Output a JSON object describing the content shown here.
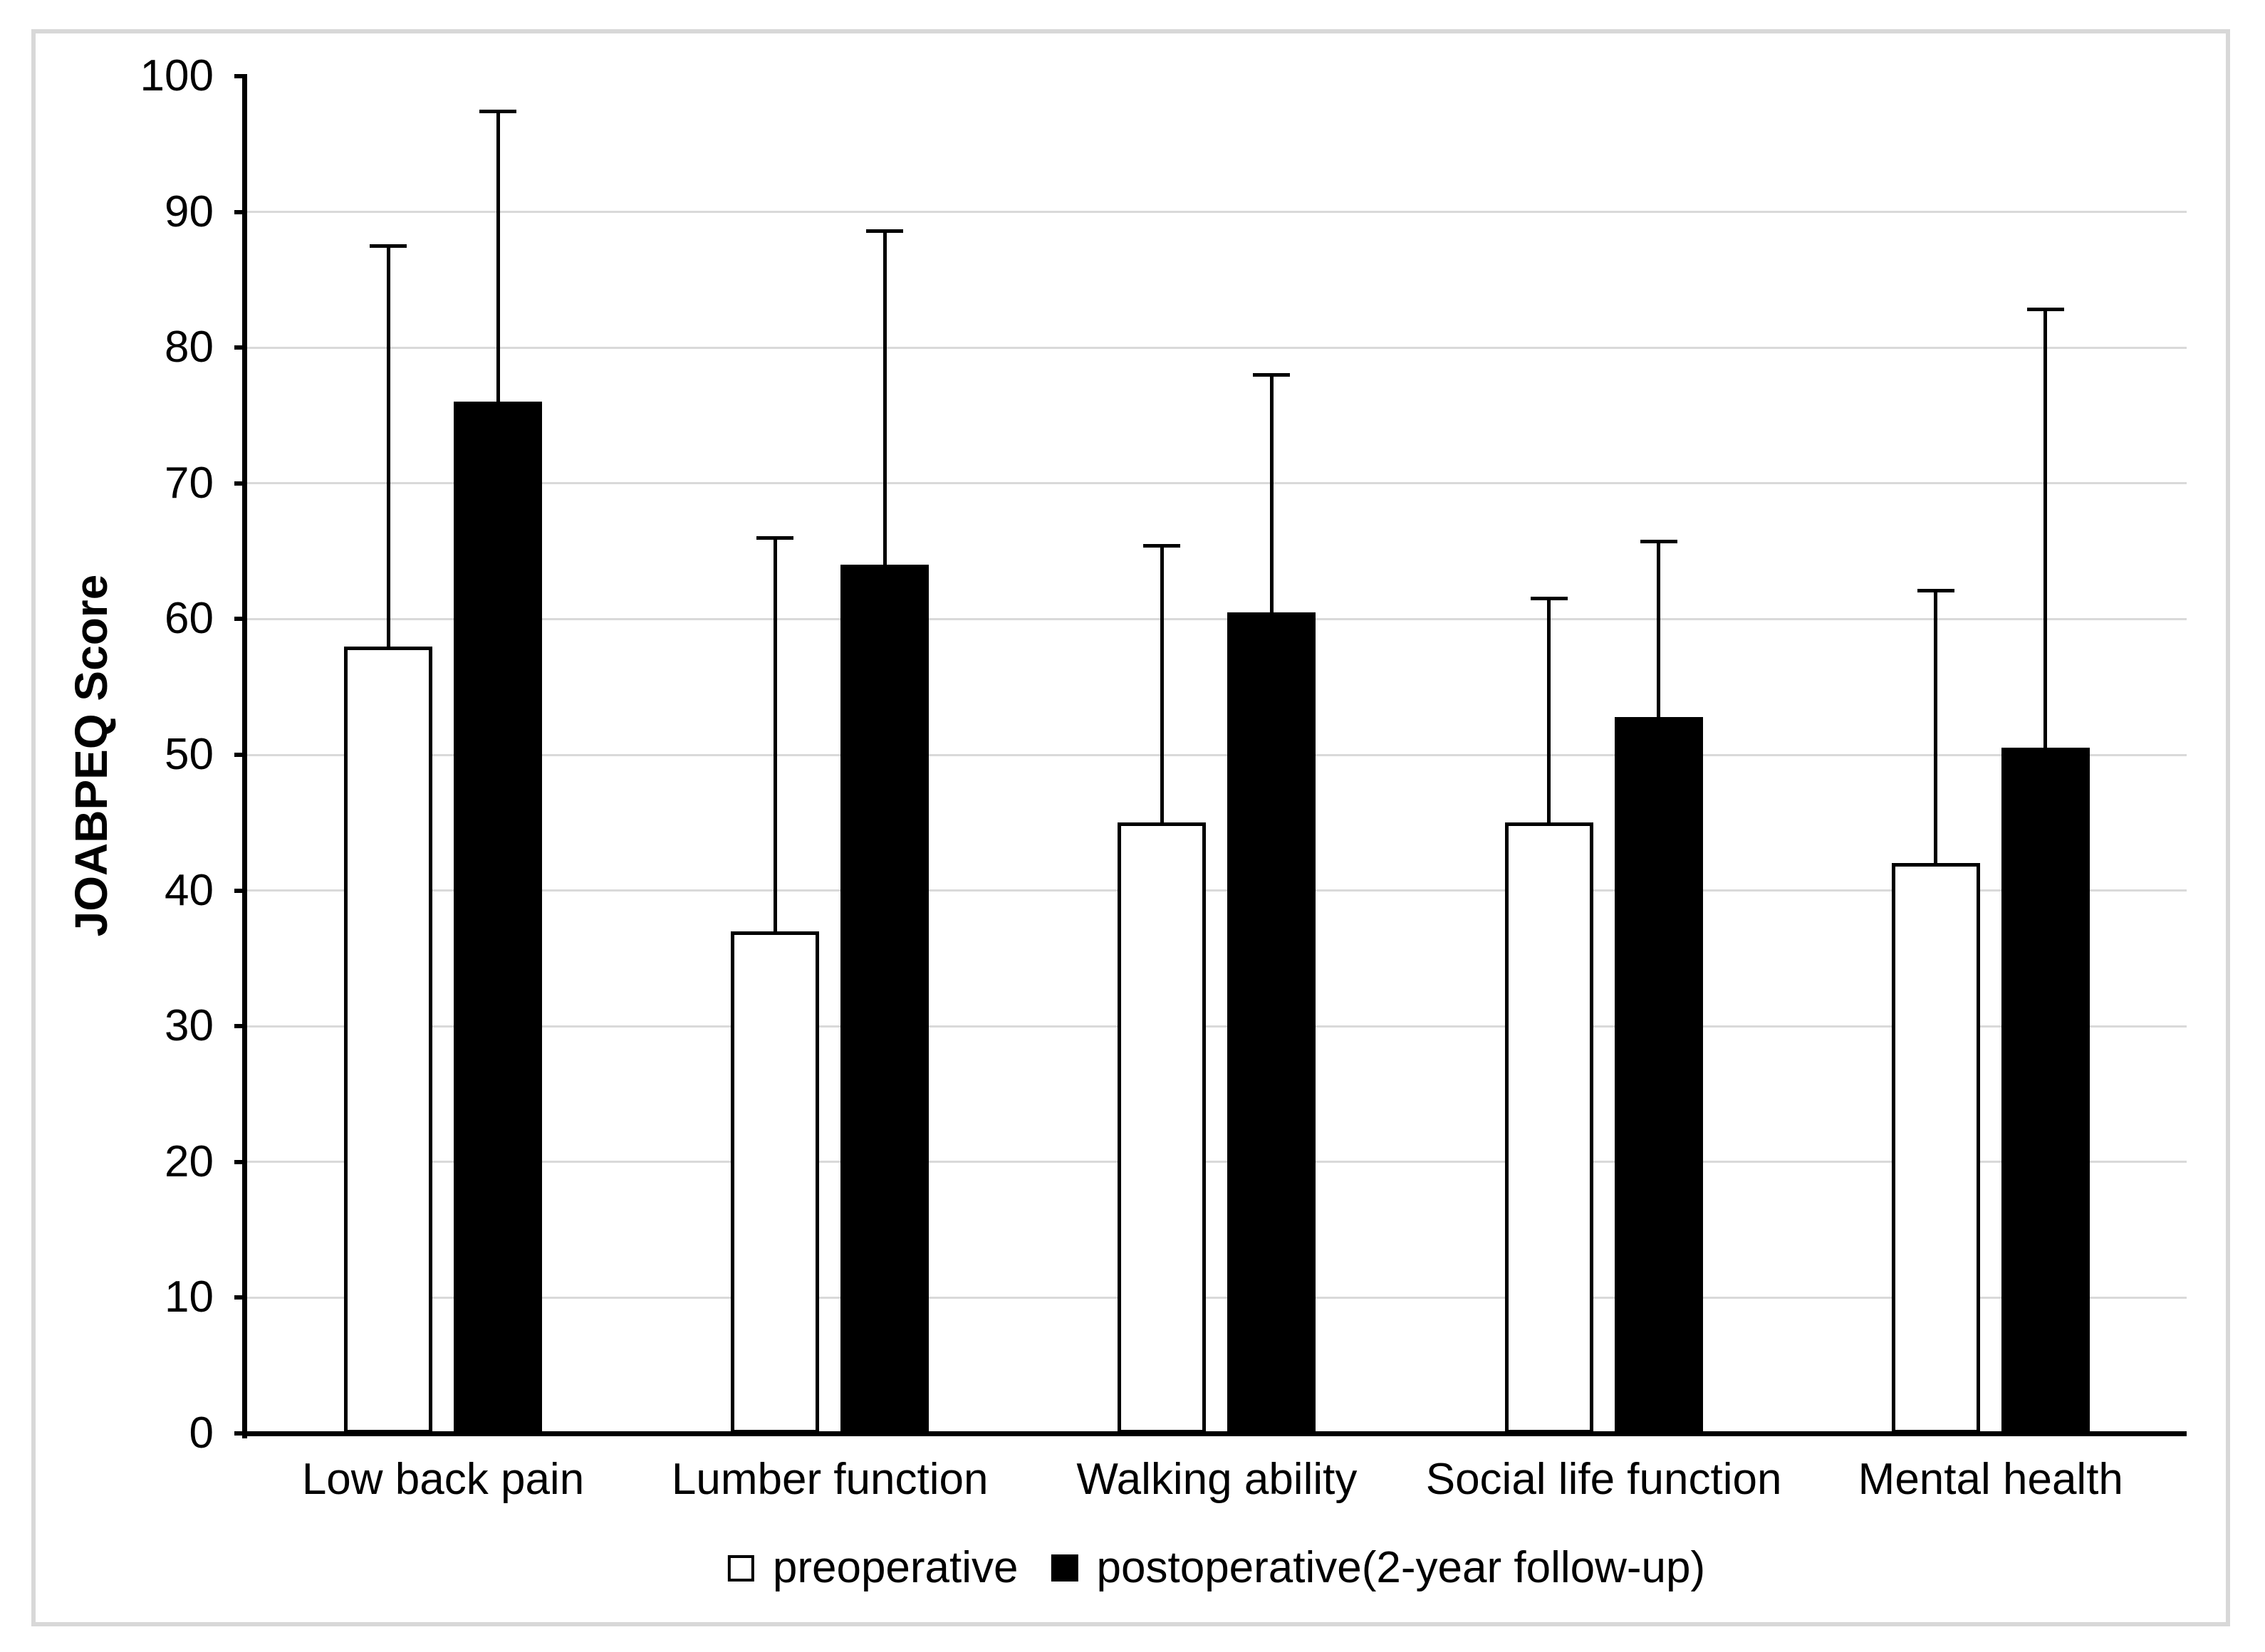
{
  "chart_data": {
    "type": "bar",
    "title": "",
    "ylabel": "JOABPEQ Score",
    "xlabel": "",
    "ylim": [
      0,
      100
    ],
    "y_ticks": [
      0,
      10,
      20,
      30,
      40,
      50,
      60,
      70,
      80,
      90,
      100
    ],
    "grid": "horizontal gridlines at 10-90, light gray",
    "legend_position": "bottom-center",
    "categories": [
      "Low back pain",
      "Lumber function",
      "Walking ability",
      "Social life function",
      "Mental health"
    ],
    "series": [
      {
        "name": "preoperative",
        "fill": "#ffffff",
        "outline": "#000000",
        "values": [
          58,
          37,
          45,
          45,
          42
        ],
        "error_top": [
          87.5,
          66.0,
          65.4,
          61.5,
          62.1
        ]
      },
      {
        "name": "postoperative(2-year follow-up)",
        "fill": "#000000",
        "outline": "#000000",
        "values": [
          76,
          64,
          60.5,
          52.8,
          50.5
        ],
        "error_top": [
          97.4,
          88.6,
          78.0,
          65.7,
          82.8
        ]
      }
    ],
    "colors": {
      "axis": "#000000",
      "gridline": "#d9d9d9",
      "frame_border": "#d8d8d8",
      "text": "#000000"
    }
  }
}
